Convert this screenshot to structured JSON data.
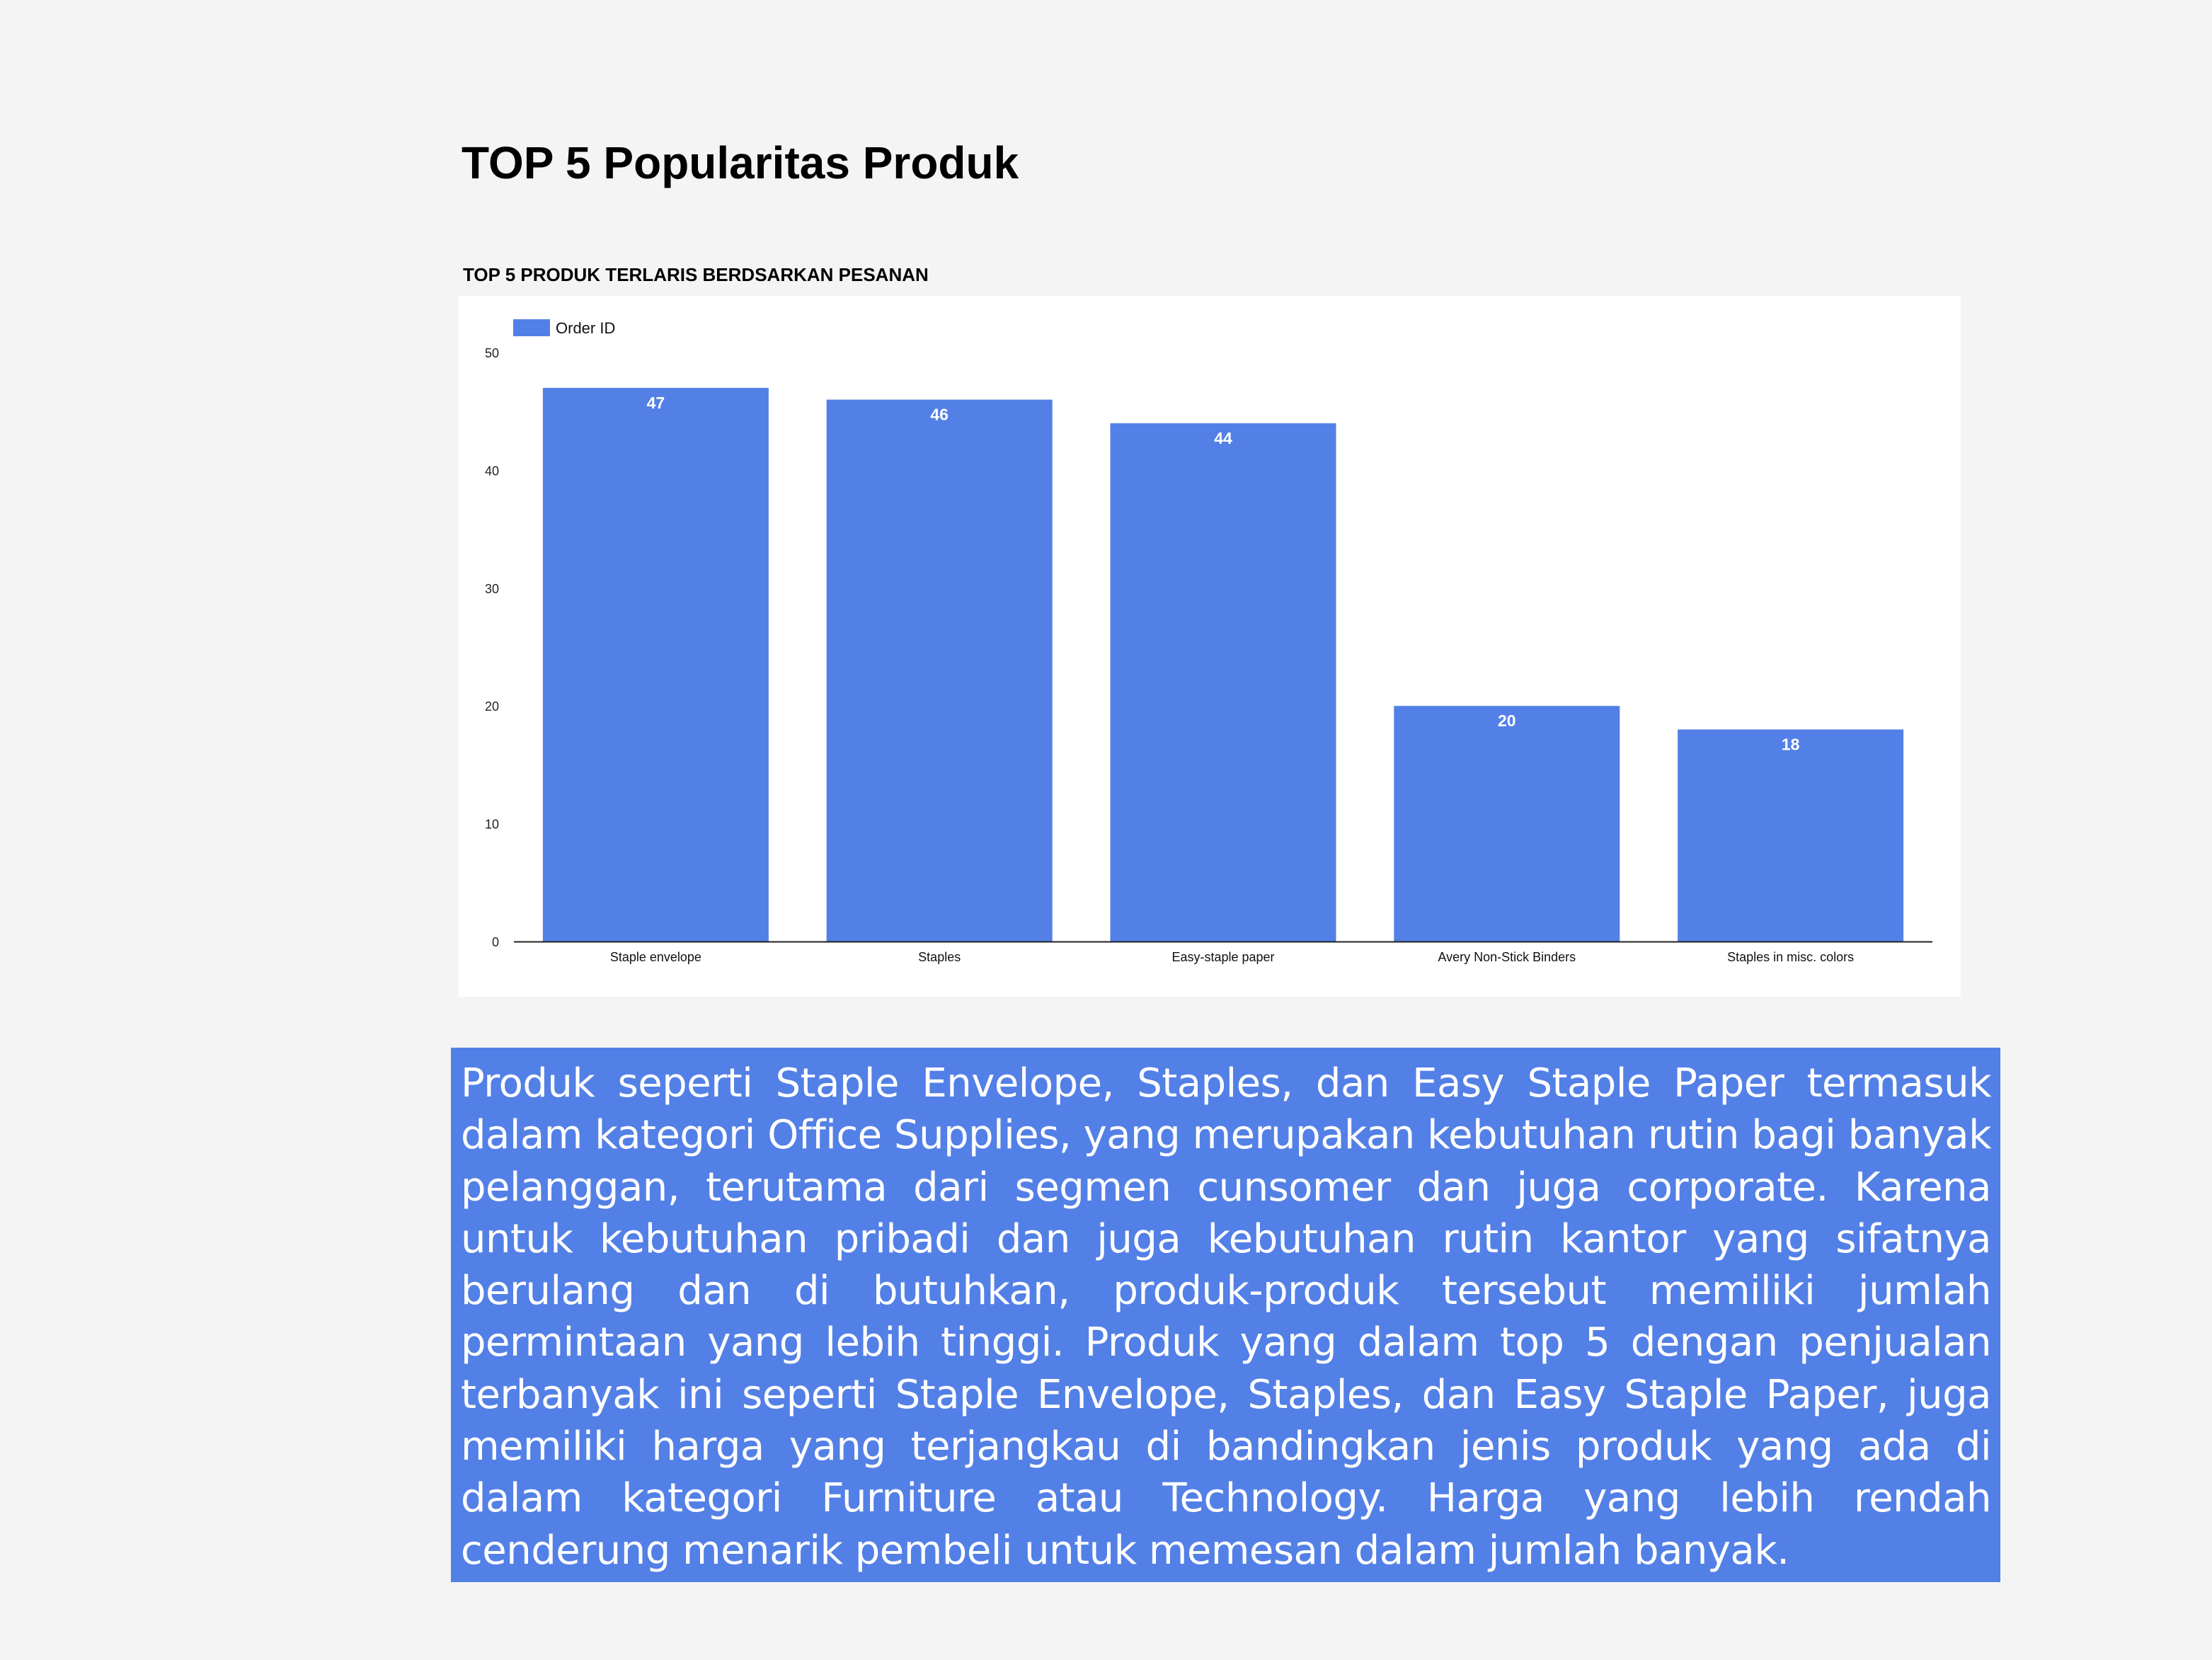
{
  "page": {
    "title": "TOP 5 Popularitas Produk"
  },
  "chart_data": {
    "type": "bar",
    "title": "TOP 5 PRODUK TERLARIS BERDSARKAN PESANAN",
    "categories": [
      "Staple envelope",
      "Staples",
      "Easy-staple paper",
      "Avery Non-Stick Binders",
      "Staples in misc. colors"
    ],
    "series": [
      {
        "name": "Order ID",
        "values": [
          47,
          46,
          44,
          20,
          18
        ]
      }
    ],
    "ylim": [
      0,
      50
    ],
    "yticks": [
      0,
      10,
      20,
      30,
      40,
      50
    ],
    "xlabel": "",
    "ylabel": "",
    "grid": false,
    "legend": "top-left",
    "data_labels": true,
    "bar_color": "#5380e6"
  },
  "description": {
    "text": "Produk seperti Staple Envelope, Staples, dan Easy Staple Paper termasuk dalam kategori Office Supplies, yang merupakan kebutuhan rutin bagi banyak pelanggan, terutama dari segmen cunsomer dan juga corporate. Karena untuk kebutuhan pribadi dan juga kebutuhan rutin kantor yang sifatnya berulang dan di butuhkan, produk-produk tersebut memiliki jumlah permintaan yang lebih tinggi. Produk yang dalam top 5 dengan penjualan terbanyak ini seperti Staple Envelope, Staples, dan Easy Staple Paper, juga memiliki harga yang terjangkau di bandingkan jenis produk yang ada di dalam kategori Furniture atau Technology. Harga yang lebih rendah cenderung menarik pembeli untuk memesan dalam jumlah banyak.",
    "background": "#5380e6"
  }
}
